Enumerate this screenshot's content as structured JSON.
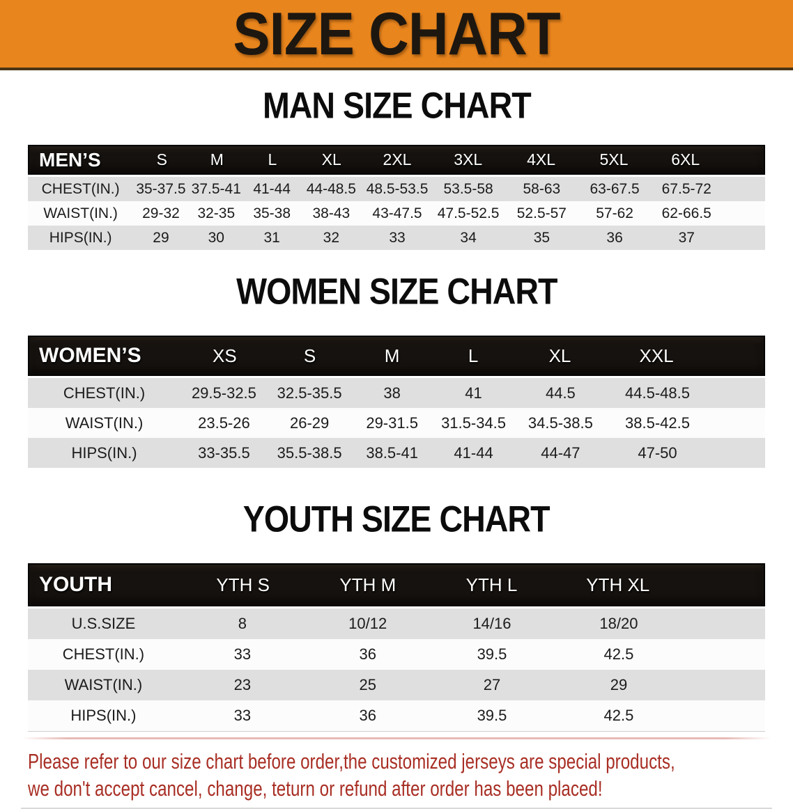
{
  "banner": {
    "title": "SIZE CHART",
    "bg_color": "#E9851D",
    "text_color": "#1D1710"
  },
  "sections": [
    {
      "heading": "MAN SIZE CHART",
      "table": {
        "header_label": "MEN’S",
        "columns": [
          "S",
          "M",
          "L",
          "XL",
          "2XL",
          "3XL",
          "4XL",
          "5XL",
          "6XL"
        ],
        "rows": [
          {
            "label": "CHEST(IN.)",
            "values": [
              "35-37.5",
              "37.5-41",
              "41-44",
              "44-48.5",
              "48.5-53.5",
              "53.5-58",
              "58-63",
              "63-67.5",
              "67.5-72"
            ]
          },
          {
            "label": "WAIST(IN.)",
            "values": [
              "29-32",
              "32-35",
              "35-38",
              "38-43",
              "43-47.5",
              "47.5-52.5",
              "52.5-57",
              "57-62",
              "62-66.5"
            ]
          },
          {
            "label": "HIPS(IN.)",
            "values": [
              "29",
              "30",
              "31",
              "32",
              "33",
              "34",
              "35",
              "36",
              "37"
            ]
          }
        ]
      }
    },
    {
      "heading": "WOMEN SIZE CHART",
      "table": {
        "header_label": "WOMEN’S",
        "columns": [
          "XS",
          "S",
          "M",
          "L",
          "XL",
          "XXL"
        ],
        "rows": [
          {
            "label": "CHEST(IN.)",
            "values": [
              "29.5-32.5",
              "32.5-35.5",
              "38",
              "41",
              "44.5",
              "44.5-48.5"
            ]
          },
          {
            "label": "WAIST(IN.)",
            "values": [
              "23.5-26",
              "26-29",
              "29-31.5",
              "31.5-34.5",
              "34.5-38.5",
              "38.5-42.5"
            ]
          },
          {
            "label": "HIPS(IN.)",
            "values": [
              "33-35.5",
              "35.5-38.5",
              "38.5-41",
              "41-44",
              "44-47",
              "47-50"
            ]
          }
        ]
      }
    },
    {
      "heading": "YOUTH SIZE CHART",
      "table": {
        "header_label": "YOUTH",
        "columns": [
          "YTH S",
          "YTH M",
          "YTH L",
          "YTH XL"
        ],
        "rows": [
          {
            "label": "U.S.SIZE",
            "values": [
              "8",
              "10/12",
              "14/16",
              "18/20"
            ]
          },
          {
            "label": "CHEST(IN.)",
            "values": [
              "33",
              "36",
              "39.5",
              "42.5"
            ]
          },
          {
            "label": "WAIST(IN.)",
            "values": [
              "23",
              "25",
              "27",
              "29"
            ]
          },
          {
            "label": "HIPS(IN.)",
            "values": [
              "33",
              "36",
              "39.5",
              "42.5"
            ]
          }
        ]
      }
    }
  ],
  "disclaimer": {
    "line1": "Please refer to our size chart before order,the customized jerseys are special products,",
    "line2": "we don't accept cancel, change, teturn or refund after order has been placed!",
    "text_color": "#A82E24"
  },
  "colors": {
    "table_header_bg": "#16120F",
    "band_gray": "#DFDFDF",
    "band_white": "#FCFCFC",
    "banner_orange": "#E9851D"
  },
  "chart_data": [
    {
      "type": "table",
      "title": "MAN SIZE CHART",
      "columns": [
        "",
        "S",
        "M",
        "L",
        "XL",
        "2XL",
        "3XL",
        "4XL",
        "5XL",
        "6XL"
      ],
      "rows": [
        [
          "CHEST(IN.)",
          "35-37.5",
          "37.5-41",
          "41-44",
          "44-48.5",
          "48.5-53.5",
          "53.5-58",
          "58-63",
          "63-67.5",
          "67.5-72"
        ],
        [
          "WAIST(IN.)",
          "29-32",
          "32-35",
          "35-38",
          "38-43",
          "43-47.5",
          "47.5-52.5",
          "52.5-57",
          "57-62",
          "62-66.5"
        ],
        [
          "HIPS(IN.)",
          "29",
          "30",
          "31",
          "32",
          "33",
          "34",
          "35",
          "36",
          "37"
        ]
      ]
    },
    {
      "type": "table",
      "title": "WOMEN SIZE CHART",
      "columns": [
        "",
        "XS",
        "S",
        "M",
        "L",
        "XL",
        "XXL"
      ],
      "rows": [
        [
          "CHEST(IN.)",
          "29.5-32.5",
          "32.5-35.5",
          "38",
          "41",
          "44.5",
          "44.5-48.5"
        ],
        [
          "WAIST(IN.)",
          "23.5-26",
          "26-29",
          "29-31.5",
          "31.5-34.5",
          "34.5-38.5",
          "38.5-42.5"
        ],
        [
          "HIPS(IN.)",
          "33-35.5",
          "35.5-38.5",
          "38.5-41",
          "41-44",
          "44-47",
          "47-50"
        ]
      ]
    },
    {
      "type": "table",
      "title": "YOUTH SIZE CHART",
      "columns": [
        "",
        "YTH S",
        "YTH M",
        "YTH L",
        "YTH XL"
      ],
      "rows": [
        [
          "U.S.SIZE",
          "8",
          "10/12",
          "14/16",
          "18/20"
        ],
        [
          "CHEST(IN.)",
          "33",
          "36",
          "39.5",
          "42.5"
        ],
        [
          "WAIST(IN.)",
          "23",
          "25",
          "27",
          "29"
        ],
        [
          "HIPS(IN.)",
          "33",
          "36",
          "39.5",
          "42.5"
        ]
      ]
    }
  ]
}
